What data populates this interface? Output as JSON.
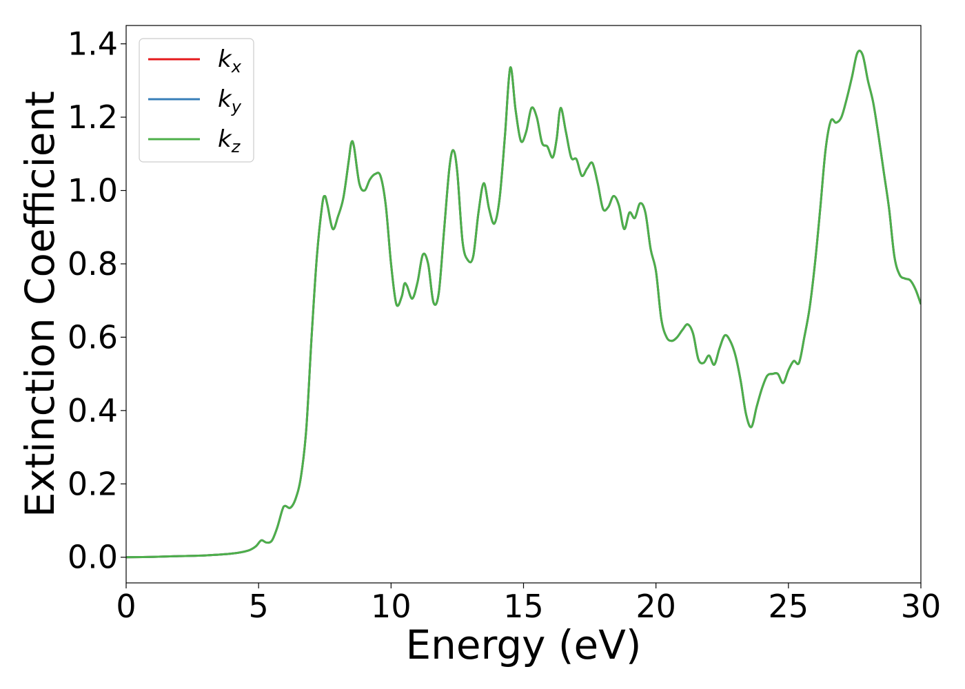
{
  "chart_data": {
    "type": "line",
    "title": "",
    "xlabel": "Energy (eV)",
    "ylabel": "Extinction Coefficient",
    "xlim": [
      0,
      30
    ],
    "ylim": [
      -0.07,
      1.45
    ],
    "xticks": [
      0,
      5,
      10,
      15,
      20,
      25,
      30
    ],
    "xtick_labels": [
      "0",
      "5",
      "10",
      "15",
      "20",
      "25",
      "30"
    ],
    "yticks": [
      0.0,
      0.2,
      0.4,
      0.6,
      0.8,
      1.0,
      1.2,
      1.4
    ],
    "ytick_labels": [
      "0.0",
      "0.2",
      "0.4",
      "0.6",
      "0.8",
      "1.0",
      "1.2",
      "1.4"
    ],
    "grid": false,
    "legend_position": "top-left",
    "series": [
      {
        "name": "k",
        "subscript": "x",
        "color": "#e41a1c",
        "data_ref": "shared"
      },
      {
        "name": "k",
        "subscript": "y",
        "color": "#377eb8",
        "data_ref": "shared"
      },
      {
        "name": "k",
        "subscript": "z",
        "color": "#4daf4a",
        "data_ref": "shared"
      }
    ],
    "x": [
      0,
      1,
      2,
      3,
      4,
      4.6,
      4.9,
      5.1,
      5.3,
      5.5,
      5.7,
      5.9,
      6.0,
      6.2,
      6.4,
      6.6,
      6.8,
      7.0,
      7.2,
      7.4,
      7.5,
      7.6,
      7.8,
      8.0,
      8.2,
      8.4,
      8.5,
      8.6,
      8.8,
      9.0,
      9.2,
      9.4,
      9.6,
      9.8,
      10.0,
      10.2,
      10.4,
      10.5,
      10.6,
      10.8,
      11.0,
      11.2,
      11.4,
      11.6,
      11.8,
      12.0,
      12.2,
      12.35,
      12.5,
      12.7,
      12.9,
      13.1,
      13.3,
      13.5,
      13.7,
      13.9,
      14.1,
      14.3,
      14.5,
      14.7,
      14.9,
      15.1,
      15.3,
      15.5,
      15.7,
      15.9,
      16.1,
      16.25,
      16.4,
      16.6,
      16.8,
      17.0,
      17.2,
      17.4,
      17.6,
      17.8,
      18.0,
      18.2,
      18.4,
      18.6,
      18.8,
      19.0,
      19.2,
      19.4,
      19.6,
      19.8,
      20.0,
      20.2,
      20.4,
      20.6,
      20.8,
      21.0,
      21.2,
      21.4,
      21.6,
      21.8,
      22.0,
      22.2,
      22.4,
      22.6,
      22.8,
      23.0,
      23.2,
      23.4,
      23.6,
      23.8,
      24.0,
      24.2,
      24.4,
      24.6,
      24.8,
      25.0,
      25.2,
      25.4,
      25.6,
      25.8,
      26.0,
      26.2,
      26.4,
      26.6,
      26.8,
      27.0,
      27.2,
      27.4,
      27.6,
      27.8,
      28.0,
      28.2,
      28.4,
      28.6,
      28.8,
      29.0,
      29.2,
      29.4,
      29.6,
      29.8,
      30.0
    ],
    "y": [
      0.0,
      0.001,
      0.003,
      0.005,
      0.01,
      0.018,
      0.03,
      0.046,
      0.04,
      0.045,
      0.08,
      0.13,
      0.14,
      0.135,
      0.16,
      0.22,
      0.35,
      0.6,
      0.82,
      0.96,
      0.985,
      0.96,
      0.895,
      0.93,
      0.98,
      1.08,
      1.13,
      1.12,
      1.02,
      1.0,
      1.03,
      1.045,
      1.04,
      0.96,
      0.8,
      0.69,
      0.71,
      0.745,
      0.74,
      0.705,
      0.75,
      0.825,
      0.8,
      0.695,
      0.72,
      0.89,
      1.06,
      1.11,
      1.05,
      0.86,
      0.81,
      0.82,
      0.94,
      1.02,
      0.95,
      0.91,
      0.98,
      1.15,
      1.335,
      1.22,
      1.135,
      1.16,
      1.225,
      1.2,
      1.13,
      1.12,
      1.09,
      1.14,
      1.225,
      1.16,
      1.09,
      1.085,
      1.04,
      1.06,
      1.075,
      1.02,
      0.95,
      0.955,
      0.985,
      0.96,
      0.895,
      0.94,
      0.925,
      0.965,
      0.94,
      0.84,
      0.78,
      0.65,
      0.6,
      0.59,
      0.6,
      0.62,
      0.635,
      0.61,
      0.54,
      0.53,
      0.55,
      0.525,
      0.57,
      0.605,
      0.59,
      0.55,
      0.48,
      0.39,
      0.355,
      0.41,
      0.46,
      0.495,
      0.5,
      0.5,
      0.475,
      0.51,
      0.535,
      0.53,
      0.6,
      0.68,
      0.8,
      0.95,
      1.11,
      1.19,
      1.185,
      1.2,
      1.25,
      1.31,
      1.375,
      1.37,
      1.3,
      1.24,
      1.15,
      1.05,
      0.95,
      0.82,
      0.77,
      0.76,
      0.755,
      0.73,
      0.69
    ]
  }
}
